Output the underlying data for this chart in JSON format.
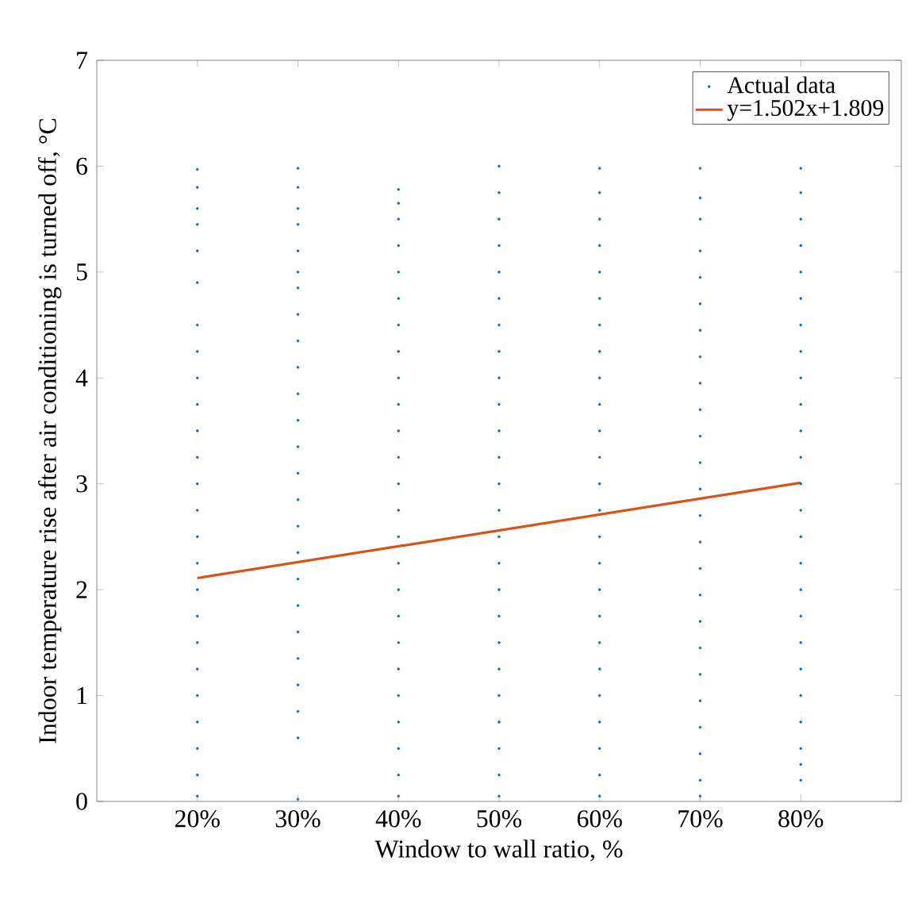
{
  "chart_data": {
    "type": "scatter",
    "xlabel": "Window to wall ratio, %",
    "ylabel": "Indoor temperature rise after air conditioning is turned off, °C",
    "xlim": [
      0.1,
      0.9
    ],
    "ylim": [
      0,
      7
    ],
    "xticks": [
      {
        "value": 0.2,
        "label": "20%"
      },
      {
        "value": 0.3,
        "label": "30%"
      },
      {
        "value": 0.4,
        "label": "40%"
      },
      {
        "value": 0.5,
        "label": "50%"
      },
      {
        "value": 0.6,
        "label": "60%"
      },
      {
        "value": 0.7,
        "label": "70%"
      },
      {
        "value": 0.8,
        "label": "80%"
      }
    ],
    "yticks": [
      0,
      1,
      2,
      3,
      4,
      5,
      6,
      7
    ],
    "grid": false,
    "legend": "top right",
    "series": [
      {
        "name": "Actual data",
        "color": "#0072bd",
        "marker": "circle",
        "x": [
          0.2,
          0.2,
          0.2,
          0.2,
          0.2,
          0.2,
          0.2,
          0.2,
          0.2,
          0.2,
          0.2,
          0.2,
          0.2,
          0.2,
          0.2,
          0.2,
          0.2,
          0.2,
          0.2,
          0.2,
          0.2,
          0.2,
          0.2,
          0.2,
          0.2,
          0.3,
          0.3,
          0.3,
          0.3,
          0.3,
          0.3,
          0.3,
          0.3,
          0.3,
          0.3,
          0.3,
          0.3,
          0.3,
          0.3,
          0.3,
          0.3,
          0.3,
          0.3,
          0.3,
          0.3,
          0.3,
          0.3,
          0.3,
          0.3,
          0.3,
          0.4,
          0.4,
          0.4,
          0.4,
          0.4,
          0.4,
          0.4,
          0.4,
          0.4,
          0.4,
          0.4,
          0.4,
          0.4,
          0.4,
          0.4,
          0.4,
          0.4,
          0.4,
          0.4,
          0.4,
          0.4,
          0.4,
          0.4,
          0.4,
          0.4,
          0.5,
          0.5,
          0.5,
          0.5,
          0.5,
          0.5,
          0.5,
          0.5,
          0.5,
          0.5,
          0.5,
          0.5,
          0.5,
          0.5,
          0.5,
          0.5,
          0.5,
          0.5,
          0.5,
          0.5,
          0.5,
          0.5,
          0.5,
          0.5,
          0.5,
          0.6,
          0.6,
          0.6,
          0.6,
          0.6,
          0.6,
          0.6,
          0.6,
          0.6,
          0.6,
          0.6,
          0.6,
          0.6,
          0.6,
          0.6,
          0.6,
          0.6,
          0.6,
          0.6,
          0.6,
          0.6,
          0.6,
          0.6,
          0.6,
          0.6,
          0.7,
          0.7,
          0.7,
          0.7,
          0.7,
          0.7,
          0.7,
          0.7,
          0.7,
          0.7,
          0.7,
          0.7,
          0.7,
          0.7,
          0.7,
          0.7,
          0.7,
          0.7,
          0.7,
          0.7,
          0.7,
          0.7,
          0.7,
          0.7,
          0.7,
          0.8,
          0.8,
          0.8,
          0.8,
          0.8,
          0.8,
          0.8,
          0.8,
          0.8,
          0.8,
          0.8,
          0.8,
          0.8,
          0.8,
          0.8,
          0.8,
          0.8,
          0.8,
          0.8,
          0.8,
          0.8,
          0.8,
          0.8,
          0.8,
          0.8
        ],
        "values": [
          5.97,
          5.8,
          5.6,
          5.45,
          5.2,
          4.9,
          4.5,
          4.25,
          4.0,
          3.75,
          3.5,
          3.25,
          3.0,
          2.75,
          2.5,
          2.25,
          2.0,
          1.75,
          1.5,
          1.25,
          1.0,
          0.75,
          0.5,
          0.25,
          0.05,
          5.98,
          5.8,
          5.6,
          5.45,
          5.2,
          5.0,
          4.85,
          4.6,
          4.35,
          4.1,
          3.85,
          3.6,
          3.35,
          3.1,
          2.85,
          2.6,
          2.35,
          2.1,
          1.85,
          1.6,
          1.35,
          1.1,
          0.85,
          0.6,
          0.02,
          5.78,
          5.65,
          5.5,
          5.25,
          5.0,
          4.75,
          4.5,
          4.25,
          4.0,
          3.75,
          3.5,
          3.25,
          3.0,
          2.75,
          2.5,
          2.25,
          2.0,
          1.75,
          1.5,
          1.25,
          1.0,
          0.75,
          0.5,
          0.25,
          0.05,
          6.0,
          5.75,
          5.5,
          5.25,
          5.0,
          4.75,
          4.5,
          4.25,
          4.0,
          3.75,
          3.5,
          3.25,
          3.0,
          2.75,
          2.5,
          2.25,
          2.0,
          1.75,
          1.5,
          1.25,
          1.0,
          0.75,
          0.5,
          0.25,
          0.05,
          5.98,
          5.75,
          5.5,
          5.25,
          5.0,
          4.75,
          4.5,
          4.25,
          4.0,
          3.75,
          3.5,
          3.25,
          3.0,
          2.75,
          2.5,
          2.25,
          2.0,
          1.75,
          1.5,
          1.25,
          1.0,
          0.75,
          0.5,
          0.25,
          0.05,
          5.98,
          5.7,
          5.5,
          5.2,
          4.95,
          4.7,
          4.45,
          4.2,
          3.95,
          3.7,
          3.45,
          3.2,
          2.95,
          2.7,
          2.45,
          2.2,
          1.95,
          1.7,
          1.45,
          1.2,
          0.95,
          0.7,
          0.45,
          0.2,
          0.05,
          5.98,
          5.75,
          5.5,
          5.25,
          5.0,
          4.75,
          4.5,
          4.25,
          4.0,
          3.75,
          3.5,
          3.25,
          3.0,
          2.75,
          2.5,
          2.25,
          2.0,
          1.75,
          1.5,
          1.25,
          1.0,
          0.75,
          0.5,
          0.35,
          0.2
        ]
      },
      {
        "name": "y=1.502x+1.809",
        "type": "line",
        "color": "#d95319",
        "marker": "none",
        "line_style": "solid",
        "x": [
          0.2,
          0.8
        ],
        "values": [
          2.11,
          3.01
        ]
      }
    ]
  }
}
